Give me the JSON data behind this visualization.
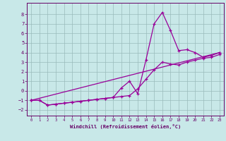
{
  "xlabel": "Windchill (Refroidissement éolien,°C)",
  "bg_color": "#c8e8e8",
  "line_color": "#990099",
  "grid_color": "#99bbbb",
  "xlim": [
    -0.5,
    23.5
  ],
  "ylim": [
    -2.6,
    9.2
  ],
  "xticks": [
    0,
    1,
    2,
    3,
    4,
    5,
    6,
    7,
    8,
    9,
    10,
    11,
    12,
    13,
    14,
    15,
    16,
    17,
    18,
    19,
    20,
    21,
    22,
    23
  ],
  "yticks": [
    -2,
    -1,
    0,
    1,
    2,
    3,
    4,
    5,
    6,
    7,
    8
  ],
  "series": [
    {
      "x": [
        0,
        1,
        2,
        3,
        4,
        5,
        6,
        7,
        8,
        9,
        10,
        11,
        12,
        13,
        14,
        15,
        16,
        17,
        18,
        19,
        20,
        21,
        22,
        23
      ],
      "y": [
        -1,
        -1,
        -1.5,
        -1.4,
        -1.3,
        -1.2,
        -1.1,
        -1.0,
        -0.9,
        -0.8,
        -0.7,
        0.3,
        1.0,
        -0.3,
        3.2,
        7.0,
        8.2,
        6.3,
        4.2,
        4.3,
        4.0,
        3.5,
        3.7,
        4.0
      ]
    },
    {
      "x": [
        0,
        1,
        2,
        3,
        4,
        5,
        6,
        7,
        8,
        9,
        10,
        11,
        12,
        13,
        14,
        15,
        16,
        17,
        18,
        19,
        20,
        21,
        22,
        23
      ],
      "y": [
        -1,
        -1,
        -1.5,
        -1.4,
        -1.3,
        -1.2,
        -1.1,
        -1.0,
        -0.9,
        -0.8,
        -0.7,
        -0.6,
        -0.5,
        0.2,
        1.2,
        2.2,
        3.0,
        2.8,
        2.7,
        3.0,
        3.2,
        3.4,
        3.5,
        3.8
      ]
    },
    {
      "x": [
        0,
        23
      ],
      "y": [
        -1,
        4.0
      ]
    }
  ]
}
